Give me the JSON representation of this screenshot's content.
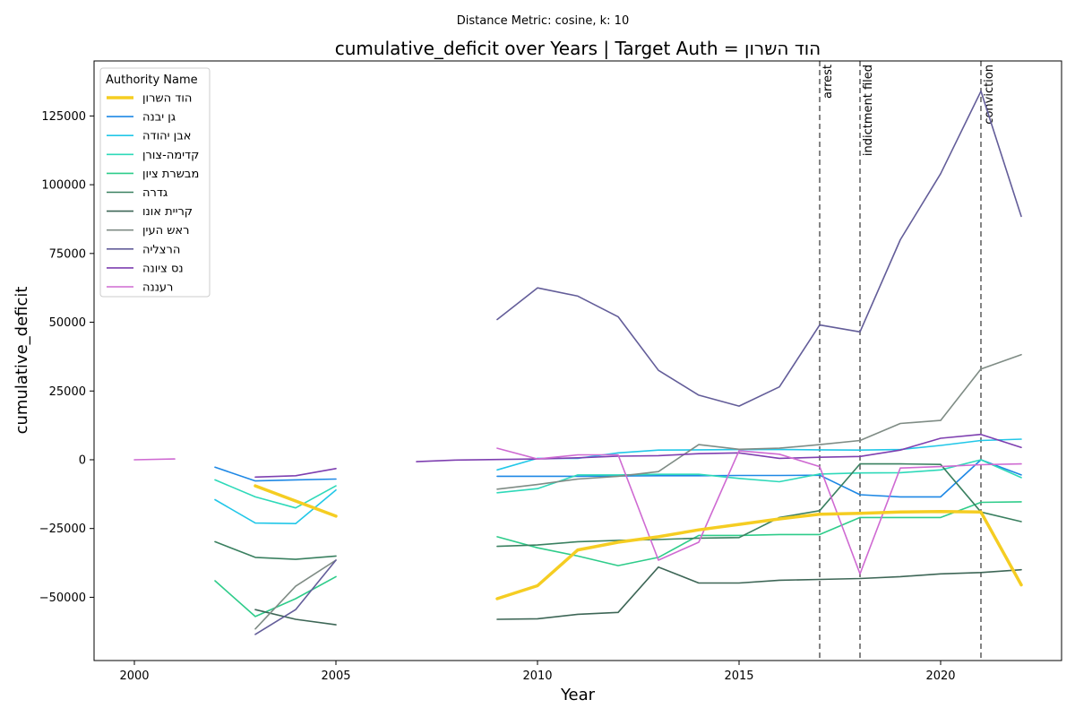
{
  "chart_data": {
    "type": "line",
    "subtitle": "Distance Metric: cosine, k: 10",
    "title": "cumulative_deficit over Years | Target Auth = הוד השרון",
    "xlabel": "Year",
    "ylabel": "cumulative_deficit",
    "xlim": [
      1999,
      2023
    ],
    "ylim": [
      -73000,
      145000
    ],
    "x_ticks": [
      2000,
      2005,
      2010,
      2015,
      2020
    ],
    "x_tick_labels": [
      "2000",
      "2005",
      "2010",
      "2015",
      "2020"
    ],
    "y_ticks": [
      -50000,
      -25000,
      0,
      25000,
      50000,
      75000,
      100000,
      125000
    ],
    "y_tick_labels": [
      "−50000",
      "−25000",
      "0",
      "25000",
      "50000",
      "75000",
      "100000",
      "125000"
    ],
    "legend_title": "Authority Name",
    "legend_position": "top-left",
    "events": [
      {
        "x": 2017,
        "label": "arrest"
      },
      {
        "x": 2018,
        "label": "indictment filed"
      },
      {
        "x": 2021,
        "label": "conviction"
      }
    ],
    "series": [
      {
        "name": "הוד השרון",
        "color": "#f5cd22",
        "width": 3.5,
        "segments": [
          [
            [
              2003,
              -9500
            ],
            [
              2004,
              -15000
            ],
            [
              2005,
              -20500
            ]
          ],
          [
            [
              2009,
              -50500
            ],
            [
              2010,
              -45800
            ],
            [
              2011,
              -32800
            ],
            [
              2012,
              -30000
            ],
            [
              2013,
              -28000
            ],
            [
              2014,
              -25500
            ],
            [
              2015,
              -23500
            ],
            [
              2016,
              -21500
            ],
            [
              2017,
              -19800
            ],
            [
              2018,
              -19500
            ],
            [
              2019,
              -19000
            ],
            [
              2020,
              -18800
            ],
            [
              2021,
              -19000
            ],
            [
              2022,
              -45500
            ]
          ]
        ]
      },
      {
        "name": "גן יבנה",
        "color": "#1e88e5",
        "width": 1.6,
        "segments": [
          [
            [
              2002,
              -2700
            ],
            [
              2003,
              -7700
            ],
            [
              2004,
              -7300
            ],
            [
              2005,
              -7000
            ]
          ],
          [
            [
              2009,
              -6000
            ],
            [
              2010,
              -6000
            ],
            [
              2011,
              -6000
            ],
            [
              2012,
              -5900
            ],
            [
              2013,
              -5800
            ],
            [
              2014,
              -5800
            ],
            [
              2015,
              -5700
            ],
            [
              2016,
              -5700
            ],
            [
              2017,
              -5600
            ],
            [
              2018,
              -12700
            ],
            [
              2019,
              -13500
            ],
            [
              2020,
              -13500
            ],
            [
              2021,
              0
            ],
            [
              2022,
              -5500
            ]
          ]
        ]
      },
      {
        "name": "אבן יהודה",
        "color": "#22c7e8",
        "width": 1.6,
        "segments": [
          [
            [
              2002,
              -14500
            ],
            [
              2003,
              -23000
            ],
            [
              2004,
              -23200
            ],
            [
              2005,
              -11000
            ]
          ],
          [
            [
              2009,
              -3700
            ],
            [
              2010,
              500
            ],
            [
              2011,
              500
            ],
            [
              2012,
              2500
            ],
            [
              2013,
              3500
            ],
            [
              2014,
              3600
            ],
            [
              2015,
              3700
            ],
            [
              2016,
              3700
            ],
            [
              2017,
              3600
            ],
            [
              2018,
              3500
            ],
            [
              2019,
              3700
            ],
            [
              2020,
              5200
            ],
            [
              2021,
              7000
            ],
            [
              2022,
              7500
            ]
          ]
        ]
      },
      {
        "name": "קדימה-צורן",
        "color": "#2ed9b9",
        "width": 1.6,
        "segments": [
          [
            [
              2002,
              -7300
            ],
            [
              2003,
              -13500
            ],
            [
              2004,
              -17500
            ],
            [
              2005,
              -9500
            ]
          ],
          [
            [
              2009,
              -12000
            ],
            [
              2010,
              -10500
            ],
            [
              2011,
              -5500
            ],
            [
              2012,
              -5500
            ],
            [
              2013,
              -5300
            ],
            [
              2014,
              -5300
            ],
            [
              2015,
              -6800
            ],
            [
              2016,
              -8000
            ],
            [
              2017,
              -5200
            ],
            [
              2018,
              -4800
            ],
            [
              2019,
              -4700
            ],
            [
              2020,
              -3700
            ],
            [
              2021,
              0
            ],
            [
              2022,
              -6500
            ]
          ]
        ]
      },
      {
        "name": "מבשרת ציון",
        "color": "#2ecc8a",
        "width": 1.6,
        "segments": [
          [
            [
              2002,
              -44000
            ],
            [
              2003,
              -57000
            ],
            [
              2004,
              -50500
            ],
            [
              2005,
              -42500
            ]
          ],
          [
            [
              2009,
              -28000
            ],
            [
              2010,
              -32000
            ],
            [
              2011,
              -35000
            ],
            [
              2012,
              -38500
            ],
            [
              2013,
              -35500
            ],
            [
              2014,
              -27500
            ],
            [
              2015,
              -27500
            ],
            [
              2016,
              -27200
            ],
            [
              2017,
              -27200
            ],
            [
              2018,
              -21000
            ],
            [
              2019,
              -21000
            ],
            [
              2020,
              -21000
            ],
            [
              2021,
              -15500
            ],
            [
              2022,
              -15300
            ]
          ]
        ]
      },
      {
        "name": "גדרה",
        "color": "#3a8060",
        "width": 1.6,
        "segments": [
          [
            [
              2002,
              -29800
            ],
            [
              2003,
              -35500
            ],
            [
              2004,
              -36200
            ],
            [
              2005,
              -35000
            ]
          ],
          [
            [
              2009,
              -31500
            ],
            [
              2010,
              -31000
            ],
            [
              2011,
              -29800
            ],
            [
              2012,
              -29300
            ],
            [
              2013,
              -29000
            ],
            [
              2014,
              -28500
            ],
            [
              2015,
              -28300
            ],
            [
              2016,
              -21000
            ],
            [
              2017,
              -18500
            ],
            [
              2018,
              -1500
            ],
            [
              2019,
              -1500
            ],
            [
              2020,
              -1700
            ],
            [
              2021,
              -19000
            ],
            [
              2022,
              -22500
            ]
          ]
        ]
      },
      {
        "name": "קריית אונו",
        "color": "#3d6656",
        "width": 1.6,
        "segments": [
          [
            [
              2003,
              -54500
            ],
            [
              2004,
              -58000
            ],
            [
              2005,
              -60000
            ]
          ],
          [
            [
              2009,
              -58000
            ],
            [
              2010,
              -57800
            ],
            [
              2011,
              -56200
            ],
            [
              2012,
              -55500
            ],
            [
              2013,
              -39000
            ],
            [
              2014,
              -44800
            ],
            [
              2015,
              -44800
            ],
            [
              2016,
              -43800
            ],
            [
              2017,
              -43500
            ],
            [
              2018,
              -43200
            ],
            [
              2019,
              -42500
            ],
            [
              2020,
              -41500
            ],
            [
              2021,
              -41000
            ],
            [
              2022,
              -40000
            ]
          ]
        ]
      },
      {
        "name": "ראש העין",
        "color": "#7f8c85",
        "width": 1.6,
        "segments": [
          [
            [
              2003,
              -61500
            ],
            [
              2004,
              -46000
            ],
            [
              2005,
              -36500
            ]
          ],
          [
            [
              2009,
              -10700
            ],
            [
              2010,
              -9000
            ],
            [
              2011,
              -7000
            ],
            [
              2012,
              -6000
            ],
            [
              2013,
              -4300
            ],
            [
              2014,
              5500
            ],
            [
              2015,
              3800
            ],
            [
              2016,
              4200
            ],
            [
              2017,
              5500
            ],
            [
              2018,
              7000
            ],
            [
              2019,
              13200
            ],
            [
              2020,
              14300
            ],
            [
              2021,
              33000
            ],
            [
              2022,
              38200
            ]
          ]
        ]
      },
      {
        "name": "הרצליה",
        "color": "#635d99",
        "width": 1.6,
        "segments": [
          [
            [
              2003,
              -63500
            ],
            [
              2004,
              -54500
            ],
            [
              2005,
              -36500
            ]
          ],
          [
            [
              2009,
              51000
            ],
            [
              2010,
              62500
            ],
            [
              2011,
              59500
            ],
            [
              2012,
              52000
            ],
            [
              2013,
              32500
            ],
            [
              2014,
              23500
            ],
            [
              2015,
              19500
            ],
            [
              2016,
              26500
            ],
            [
              2017,
              49000
            ],
            [
              2018,
              46500
            ],
            [
              2019,
              80000
            ],
            [
              2020,
              104000
            ],
            [
              2021,
              134000
            ],
            [
              2022,
              88500
            ]
          ]
        ]
      },
      {
        "name": "נס ציונה",
        "color": "#7e3fb0",
        "width": 1.6,
        "segments": [
          [
            [
              2003,
              -6300
            ],
            [
              2004,
              -5800
            ],
            [
              2005,
              -3200
            ]
          ],
          [
            [
              2007,
              -700
            ],
            [
              2008,
              -100
            ],
            [
              2009,
              100
            ],
            [
              2010,
              300
            ],
            [
              2011,
              700
            ],
            [
              2012,
              1300
            ],
            [
              2013,
              1500
            ],
            [
              2014,
              2200
            ],
            [
              2015,
              2500
            ],
            [
              2016,
              500
            ],
            [
              2017,
              900
            ],
            [
              2018,
              1200
            ],
            [
              2019,
              3500
            ],
            [
              2020,
              7800
            ],
            [
              2021,
              9200
            ],
            [
              2022,
              4500
            ]
          ]
        ]
      },
      {
        "name": "רעננה",
        "color": "#cf6ad2",
        "width": 1.6,
        "segments": [
          [
            [
              2000,
              0
            ],
            [
              2001,
              300
            ]
          ],
          [
            [
              2009,
              4200
            ],
            [
              2010,
              300
            ],
            [
              2011,
              1800
            ],
            [
              2012,
              1800
            ],
            [
              2013,
              -36500
            ],
            [
              2014,
              -30000
            ],
            [
              2015,
              3300
            ],
            [
              2016,
              2000
            ],
            [
              2017,
              -2500
            ],
            [
              2018,
              -41500
            ],
            [
              2019,
              -3000
            ],
            [
              2020,
              -2500
            ],
            [
              2021,
              -1800
            ],
            [
              2022,
              -1500
            ]
          ]
        ]
      }
    ]
  }
}
